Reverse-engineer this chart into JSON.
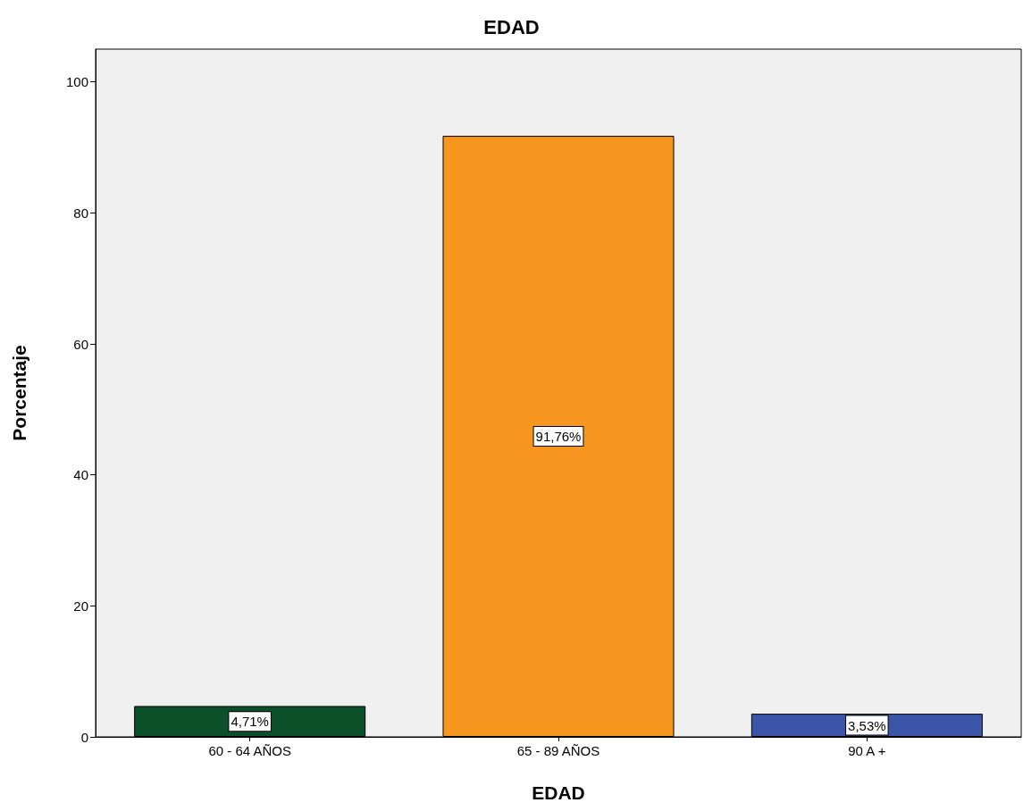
{
  "chart_data": {
    "type": "bar",
    "title": "EDAD",
    "xlabel": "EDAD",
    "ylabel": "Porcentaje",
    "categories": [
      "60 - 64 AÑOS",
      "65 - 89 AÑOS",
      "90 A +"
    ],
    "values": [
      4.71,
      91.76,
      3.53
    ],
    "colors": [
      "#0b5028",
      "#f7961e",
      "#3b56a8"
    ],
    "value_labels": [
      "4,71%",
      "91,76%",
      "3,53%"
    ],
    "ylim": [
      0,
      105
    ],
    "yticks": [
      0,
      20,
      40,
      60,
      80,
      100
    ],
    "grid": false
  }
}
